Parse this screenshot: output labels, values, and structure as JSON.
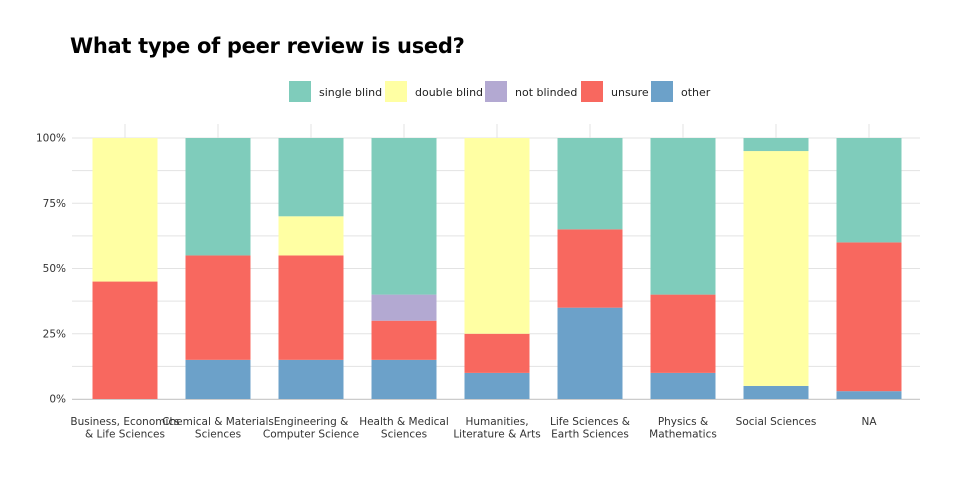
{
  "chart_data": {
    "type": "bar",
    "stacked": true,
    "title": "What type of peer review is used?",
    "xlabel": "",
    "ylabel": "",
    "ylim": [
      0,
      100
    ],
    "y_ticks": [
      "0%",
      "25%",
      "50%",
      "75%",
      "100%"
    ],
    "categories": [
      "Business, Economics\n& Life Sciences",
      "Chemical & Materials\nSciences",
      "Engineering &\nComputer Science",
      "Health & Medical\nSciences",
      "Humanities,\nLiterature & Arts",
      "Life Sciences &\nEarth Sciences",
      "Physics &\nMathematics",
      "Social Sciences",
      "NA"
    ],
    "stack_order": [
      "other",
      "unsure",
      "not blinded",
      "double blind",
      "single blind"
    ],
    "series": [
      {
        "name": "single blind",
        "color": "#7fccbb",
        "values": [
          0,
          45,
          30,
          60,
          0,
          35,
          60,
          5,
          40
        ]
      },
      {
        "name": "double blind",
        "color": "#ffffa3",
        "values": [
          55,
          0,
          15,
          0,
          75,
          0,
          0,
          90,
          0
        ]
      },
      {
        "name": "not blinded",
        "color": "#b3a9d2",
        "values": [
          0,
          0,
          0,
          10,
          0,
          0,
          0,
          0,
          0
        ]
      },
      {
        "name": "unsure",
        "color": "#f8685f",
        "values": [
          45,
          40,
          40,
          15,
          15,
          30,
          30,
          0,
          57
        ]
      },
      {
        "name": "other",
        "color": "#6ca1c9",
        "values": [
          0,
          15,
          15,
          15,
          10,
          35,
          10,
          5,
          3
        ]
      }
    ],
    "grid": true,
    "legend_position": "top"
  }
}
